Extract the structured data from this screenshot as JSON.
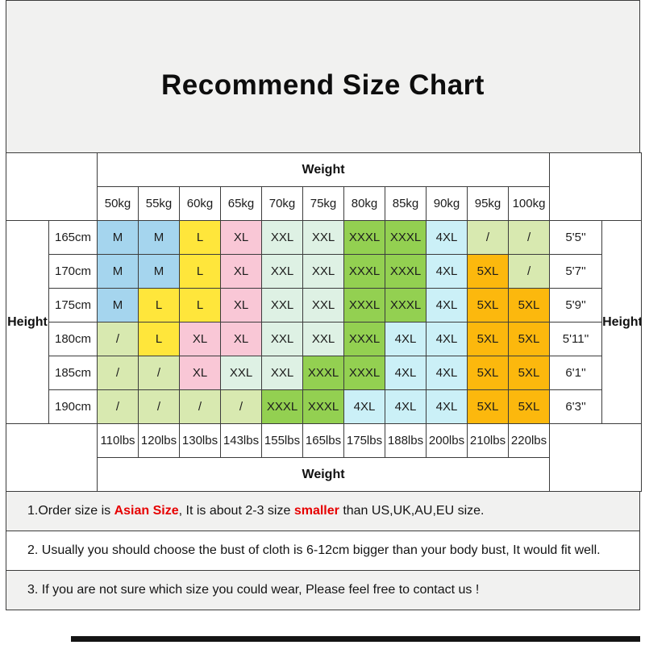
{
  "title": "Recommend Size Chart",
  "labels": {
    "weight_top": "Weight",
    "weight_bottom": "Weight",
    "height_left": "Height",
    "height_right": "Height"
  },
  "chart_data": {
    "type": "table",
    "title": "Recommend Size Chart",
    "weight_kg_headers": [
      "50kg",
      "55kg",
      "60kg",
      "65kg",
      "70kg",
      "75kg",
      "80kg",
      "85kg",
      "90kg",
      "95kg",
      "100kg"
    ],
    "weight_lbs_headers": [
      "110lbs",
      "120lbs",
      "130lbs",
      "143lbs",
      "155lbs",
      "165lbs",
      "175lbs",
      "188lbs",
      "200lbs",
      "210lbs",
      "220lbs"
    ],
    "rows": [
      {
        "height_cm": "165cm",
        "height_ft": "5'5''",
        "sizes": [
          "M",
          "M",
          "L",
          "XL",
          "XXL",
          "XXL",
          "XXXL",
          "XXXL",
          "4XL",
          "/",
          "/"
        ]
      },
      {
        "height_cm": "170cm",
        "height_ft": "5'7''",
        "sizes": [
          "M",
          "M",
          "L",
          "XL",
          "XXL",
          "XXL",
          "XXXL",
          "XXXL",
          "4XL",
          "5XL",
          "/"
        ]
      },
      {
        "height_cm": "175cm",
        "height_ft": "5'9''",
        "sizes": [
          "M",
          "L",
          "L",
          "XL",
          "XXL",
          "XXL",
          "XXXL",
          "XXXL",
          "4XL",
          "5XL",
          "5XL"
        ]
      },
      {
        "height_cm": "180cm",
        "height_ft": "5'11''",
        "sizes": [
          "/",
          "L",
          "XL",
          "XL",
          "XXL",
          "XXL",
          "XXXL",
          "4XL",
          "4XL",
          "5XL",
          "5XL"
        ]
      },
      {
        "height_cm": "185cm",
        "height_ft": "6'1''",
        "sizes": [
          "/",
          "/",
          "XL",
          "XXL",
          "XXL",
          "XXXL",
          "XXXL",
          "4XL",
          "4XL",
          "5XL",
          "5XL"
        ]
      },
      {
        "height_cm": "190cm",
        "height_ft": "6'3''",
        "sizes": [
          "/",
          "/",
          "/",
          "/",
          "XXXL",
          "XXXL",
          "4XL",
          "4XL",
          "4XL",
          "5XL",
          "5XL"
        ]
      }
    ],
    "size_colors": {
      "M": "#a5d5ee",
      "L": "#ffe63b",
      "XL": "#f9c7d6",
      "XXL": "#def1e4",
      "XXXL": "#93d051",
      "4XL": "#cbf0f7",
      "5XL": "#fcb80d",
      "/": "#d8e9b0"
    }
  },
  "notes": {
    "line1_prefix": "1.Order size is ",
    "line1_red1": "Asian Size",
    "line1_mid": ", It is about 2-3 size ",
    "line1_red2": "smaller",
    "line1_suffix": " than US,UK,AU,EU size.",
    "line2": "2. Usually you should choose the bust of cloth is 6-12cm bigger than your body bust, It would fit well.",
    "line3": "3. If you are not sure which size you could wear, Please feel free to contact us !"
  },
  "colors": {
    "panel_bg": "#f1f1f0",
    "table_border": "#3c3c3c",
    "highlight_red": "#e60000",
    "bottom_bar_color": "#141414"
  }
}
